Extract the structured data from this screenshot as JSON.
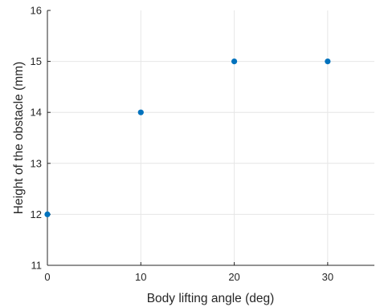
{
  "chart_data": {
    "type": "scatter",
    "x": [
      0,
      10,
      20,
      30
    ],
    "y": [
      12,
      14,
      15,
      15
    ],
    "xlabel": "Body lifting angle (deg)",
    "ylabel": "Height of the obstacle (mm)",
    "xlim": [
      0,
      35
    ],
    "ylim": [
      11,
      16
    ],
    "xticks": [
      0,
      10,
      20,
      30
    ],
    "yticks": [
      11,
      12,
      13,
      14,
      15,
      16
    ],
    "xtick_labels": [
      "0",
      "10",
      "20",
      "30"
    ],
    "ytick_labels": [
      "11",
      "12",
      "13",
      "14",
      "15",
      "16"
    ],
    "grid": true,
    "marker_color": "#0072BD",
    "axis_color": "#262626",
    "grid_color": "#e6e6e6"
  }
}
